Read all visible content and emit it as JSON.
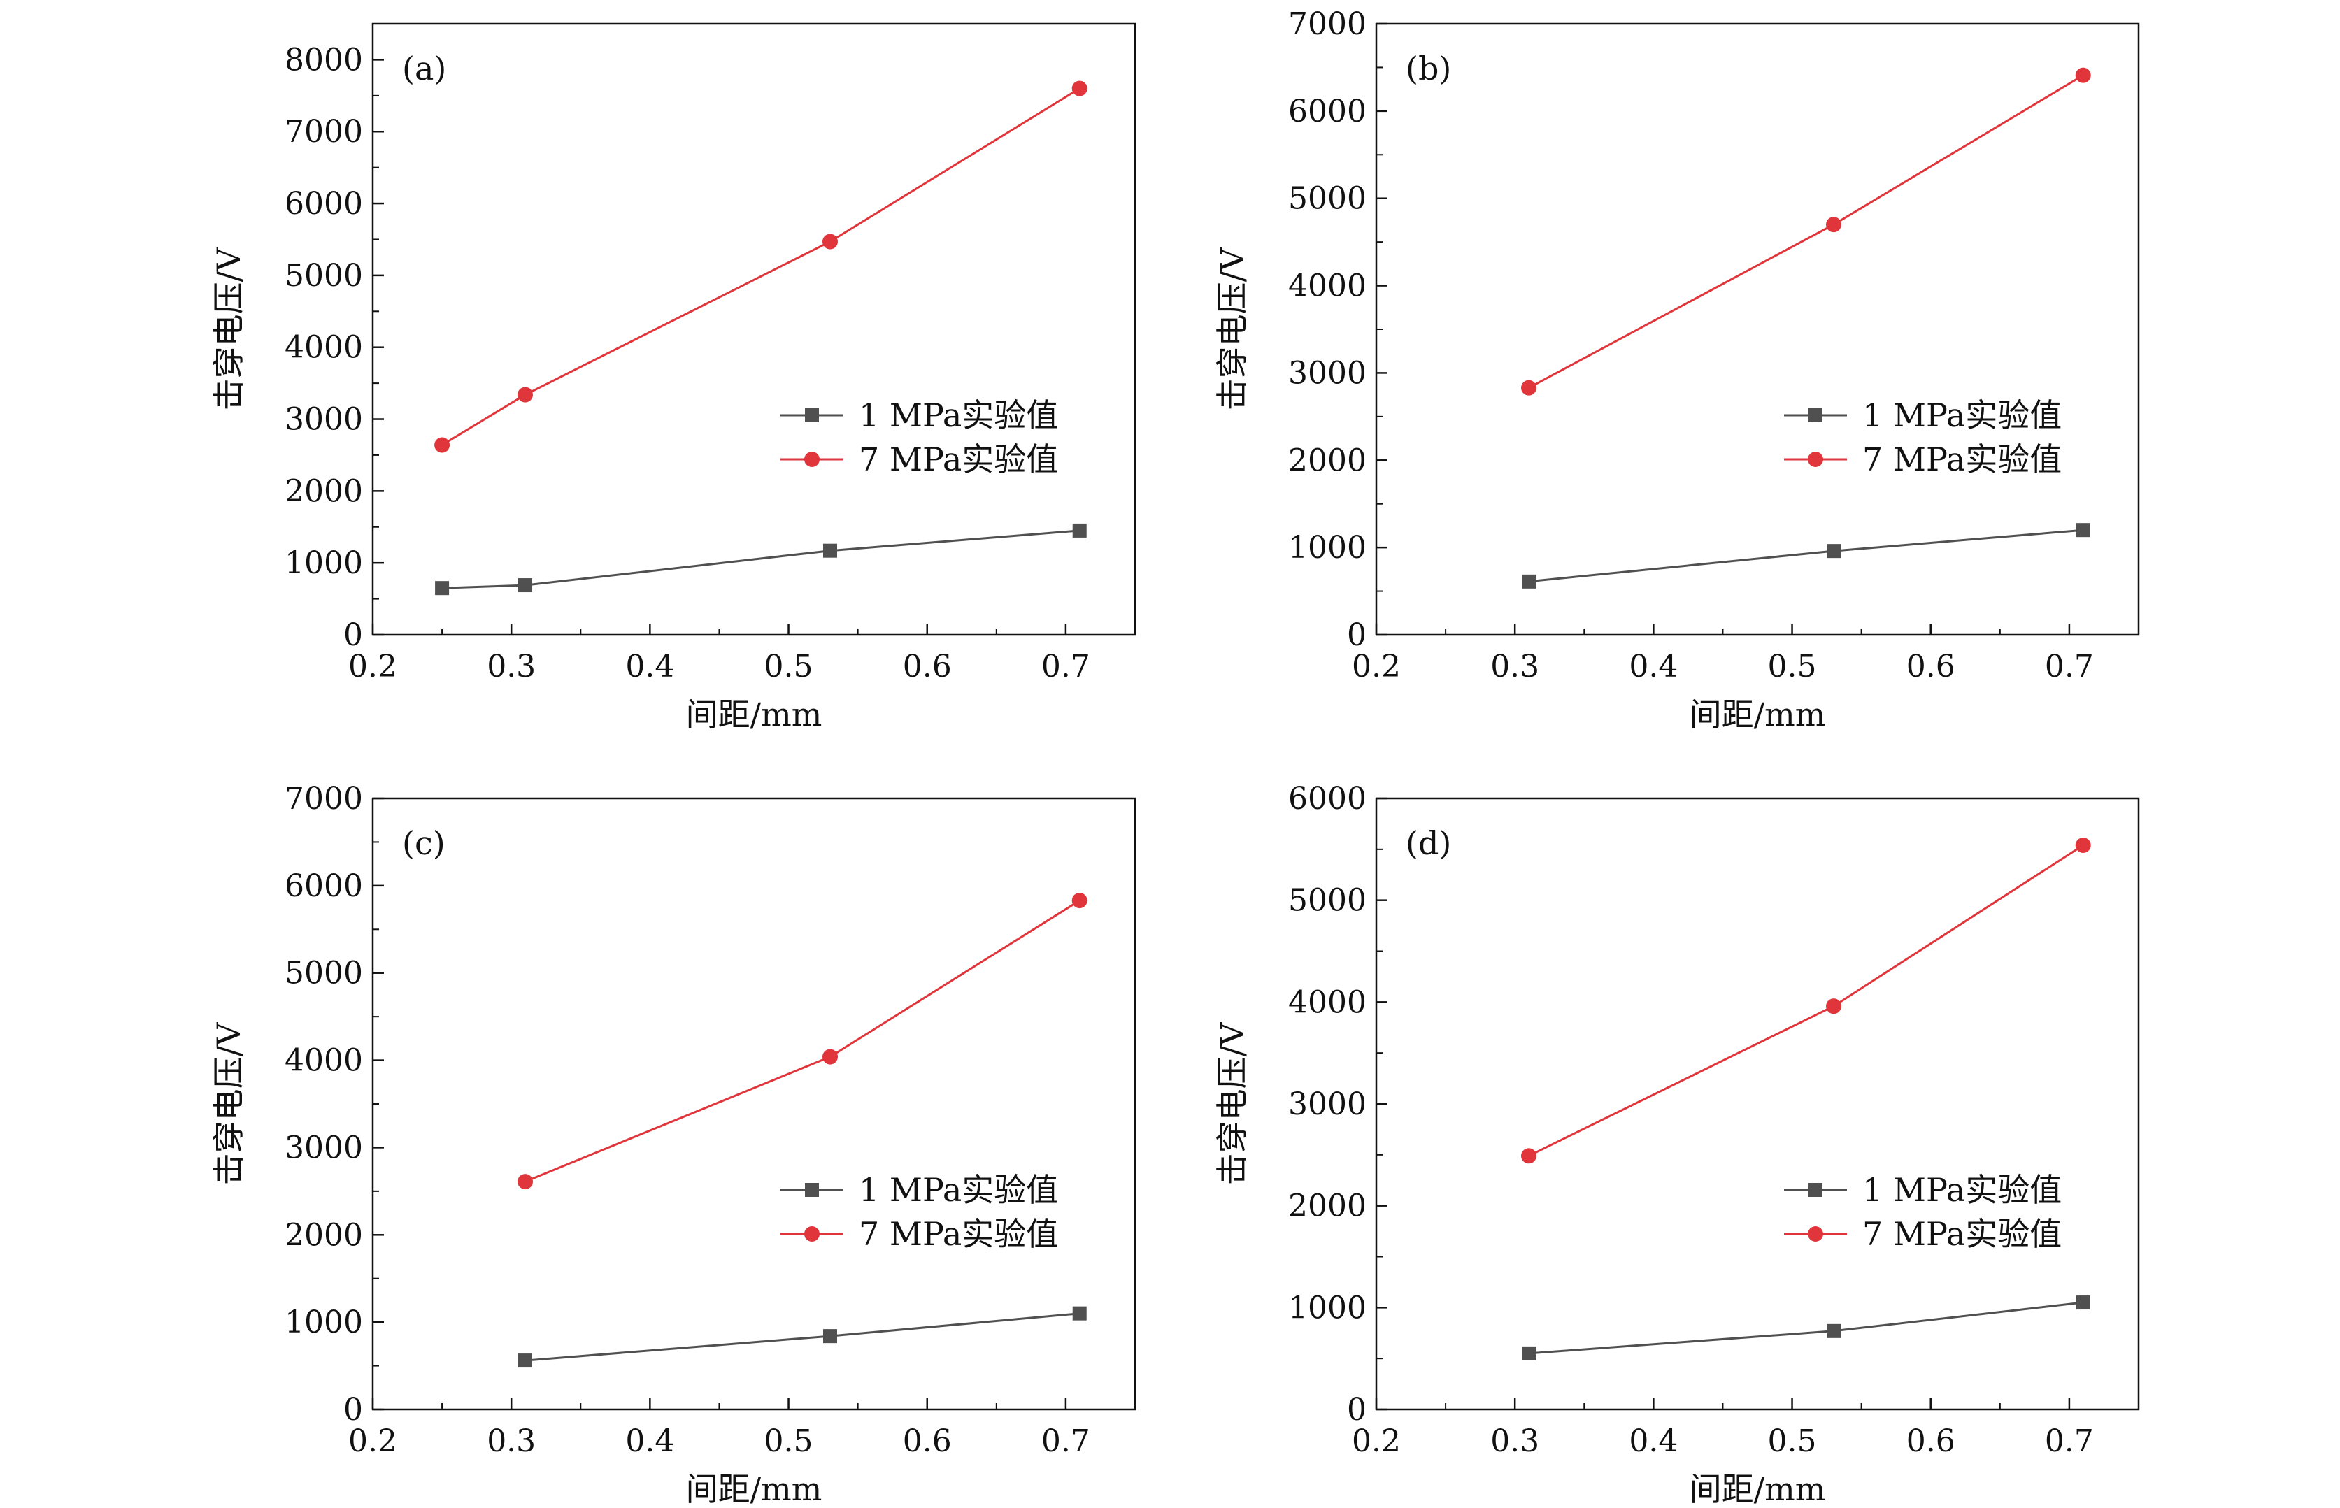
{
  "colors": {
    "series1": "#505050",
    "series2": "#e0353b",
    "axis": "#111111"
  },
  "chart_data": [
    {
      "type": "line",
      "panel_label": "(a)",
      "xlabel": "间距/mm",
      "ylabel": "击穿电压/V",
      "xlim": [
        0.2,
        0.75
      ],
      "ylim": [
        0,
        8500
      ],
      "xticks": [
        0.2,
        0.3,
        0.4,
        0.5,
        0.6,
        0.7
      ],
      "xtick_labels": [
        "0.2",
        "0.3",
        "0.4",
        "0.5",
        "0.6",
        "0.7"
      ],
      "yticks": [
        0,
        1000,
        2000,
        3000,
        4000,
        5000,
        6000,
        7000,
        8000
      ],
      "ytick_labels": [
        "0",
        "1000",
        "2000",
        "3000",
        "4000",
        "5000",
        "6000",
        "7000",
        "8000"
      ],
      "legend_position": "center-right",
      "series": [
        {
          "name": "1 MPa实验值",
          "marker": "square",
          "x": [
            0.25,
            0.31,
            0.53,
            0.71
          ],
          "values": [
            650,
            690,
            1170,
            1450
          ]
        },
        {
          "name": "7 MPa实验值",
          "marker": "circle",
          "x": [
            0.25,
            0.31,
            0.53,
            0.71
          ],
          "values": [
            2640,
            3340,
            5470,
            7600
          ]
        }
      ]
    },
    {
      "type": "line",
      "panel_label": "(b)",
      "xlabel": "间距/mm",
      "ylabel": "击穿电压/V",
      "xlim": [
        0.2,
        0.75
      ],
      "ylim": [
        0,
        7000
      ],
      "xticks": [
        0.2,
        0.3,
        0.4,
        0.5,
        0.6,
        0.7
      ],
      "xtick_labels": [
        "0.2",
        "0.3",
        "0.4",
        "0.5",
        "0.6",
        "0.7"
      ],
      "yticks": [
        0,
        1000,
        2000,
        3000,
        4000,
        5000,
        6000,
        7000
      ],
      "ytick_labels": [
        "0",
        "1000",
        "2000",
        "3000",
        "4000",
        "5000",
        "6000",
        "7000"
      ],
      "legend_position": "center-right",
      "series": [
        {
          "name": "1 MPa实验值",
          "marker": "square",
          "x": [
            0.31,
            0.53,
            0.71
          ],
          "values": [
            610,
            960,
            1200
          ]
        },
        {
          "name": "7 MPa实验值",
          "marker": "circle",
          "x": [
            0.31,
            0.53,
            0.71
          ],
          "values": [
            2830,
            4700,
            6410
          ]
        }
      ]
    },
    {
      "type": "line",
      "panel_label": "(c)",
      "xlabel": "间距/mm",
      "ylabel": "击穿电压/V",
      "xlim": [
        0.2,
        0.75
      ],
      "ylim": [
        0,
        7000
      ],
      "xticks": [
        0.2,
        0.3,
        0.4,
        0.5,
        0.6,
        0.7
      ],
      "xtick_labels": [
        "0.2",
        "0.3",
        "0.4",
        "0.5",
        "0.6",
        "0.7"
      ],
      "yticks": [
        0,
        1000,
        2000,
        3000,
        4000,
        5000,
        6000,
        7000
      ],
      "ytick_labels": [
        "0",
        "1000",
        "2000",
        "3000",
        "4000",
        "5000",
        "6000",
        "7000"
      ],
      "legend_position": "center-right",
      "series": [
        {
          "name": "1 MPa实验值",
          "marker": "square",
          "x": [
            0.31,
            0.53,
            0.71
          ],
          "values": [
            560,
            840,
            1100
          ]
        },
        {
          "name": "7 MPa实验值",
          "marker": "circle",
          "x": [
            0.31,
            0.53,
            0.71
          ],
          "values": [
            2610,
            4040,
            5830
          ]
        }
      ]
    },
    {
      "type": "line",
      "panel_label": "(d)",
      "xlabel": "间距/mm",
      "ylabel": "击穿电压/V",
      "xlim": [
        0.2,
        0.75
      ],
      "ylim": [
        0,
        6000
      ],
      "xticks": [
        0.2,
        0.3,
        0.4,
        0.5,
        0.6,
        0.7
      ],
      "xtick_labels": [
        "0.2",
        "0.3",
        "0.4",
        "0.5",
        "0.6",
        "0.7"
      ],
      "yticks": [
        0,
        1000,
        2000,
        3000,
        4000,
        5000,
        6000
      ],
      "ytick_labels": [
        "0",
        "1000",
        "2000",
        "3000",
        "4000",
        "5000",
        "6000"
      ],
      "legend_position": "center-right",
      "series": [
        {
          "name": "1 MPa实验值",
          "marker": "square",
          "x": [
            0.31,
            0.53,
            0.71
          ],
          "values": [
            550,
            770,
            1050
          ]
        },
        {
          "name": "7 MPa实验值",
          "marker": "circle",
          "x": [
            0.31,
            0.53,
            0.71
          ],
          "values": [
            2490,
            3960,
            5540
          ]
        }
      ]
    }
  ]
}
